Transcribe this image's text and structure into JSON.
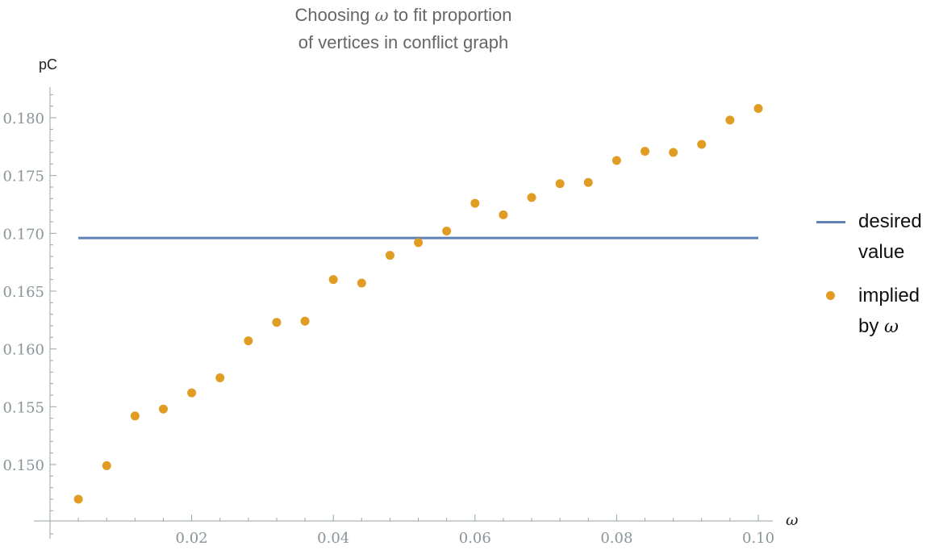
{
  "chart_data": {
    "type": "scatter",
    "title_line1_prefix": "Choosing",
    "title_symbol": "ω",
    "title_line1_suffix": "to fit proportion",
    "title_line2": "of vertices in conflict graph",
    "xlabel": "ω",
    "ylabel": "pC",
    "xlim": [
      0.0,
      0.1
    ],
    "ylim": [
      0.1435,
      0.1825
    ],
    "x_ticks": [
      0.02,
      0.04,
      0.06,
      0.08,
      0.1
    ],
    "x_tick_labels": [
      "0.02",
      "0.04",
      "0.06",
      "0.08",
      "0.10"
    ],
    "y_ticks": [
      0.15,
      0.155,
      0.16,
      0.165,
      0.17,
      0.175,
      0.18
    ],
    "y_tick_labels": [
      "0.150",
      "0.155",
      "0.160",
      "0.165",
      "0.170",
      "0.175",
      "0.180"
    ],
    "legend_position": "right",
    "series": [
      {
        "name": "desired value",
        "legend_line1": "desired",
        "legend_line2": "value",
        "kind": "line",
        "color": "#5e81b5",
        "x": [
          0.004,
          0.1
        ],
        "y": [
          0.1696,
          0.1696
        ]
      },
      {
        "name": "implied by ω",
        "legend_line1": "implied",
        "legend_line2_prefix": "by",
        "legend_symbol": "ω",
        "kind": "points",
        "color": "#e19c24",
        "x": [
          0.004,
          0.008,
          0.012,
          0.016,
          0.02,
          0.024,
          0.028,
          0.032,
          0.036,
          0.04,
          0.044,
          0.048,
          0.052,
          0.056,
          0.06,
          0.064,
          0.068,
          0.072,
          0.076,
          0.08,
          0.084,
          0.088,
          0.092,
          0.096,
          0.1
        ],
        "y": [
          0.147,
          0.1499,
          0.1542,
          0.1548,
          0.1562,
          0.1575,
          0.1607,
          0.1623,
          0.1624,
          0.166,
          0.1657,
          0.1681,
          0.1692,
          0.1702,
          0.1726,
          0.1716,
          0.1731,
          0.1743,
          0.1744,
          0.1763,
          0.1771,
          0.177,
          0.1777,
          0.1798,
          0.1808
        ]
      }
    ]
  }
}
